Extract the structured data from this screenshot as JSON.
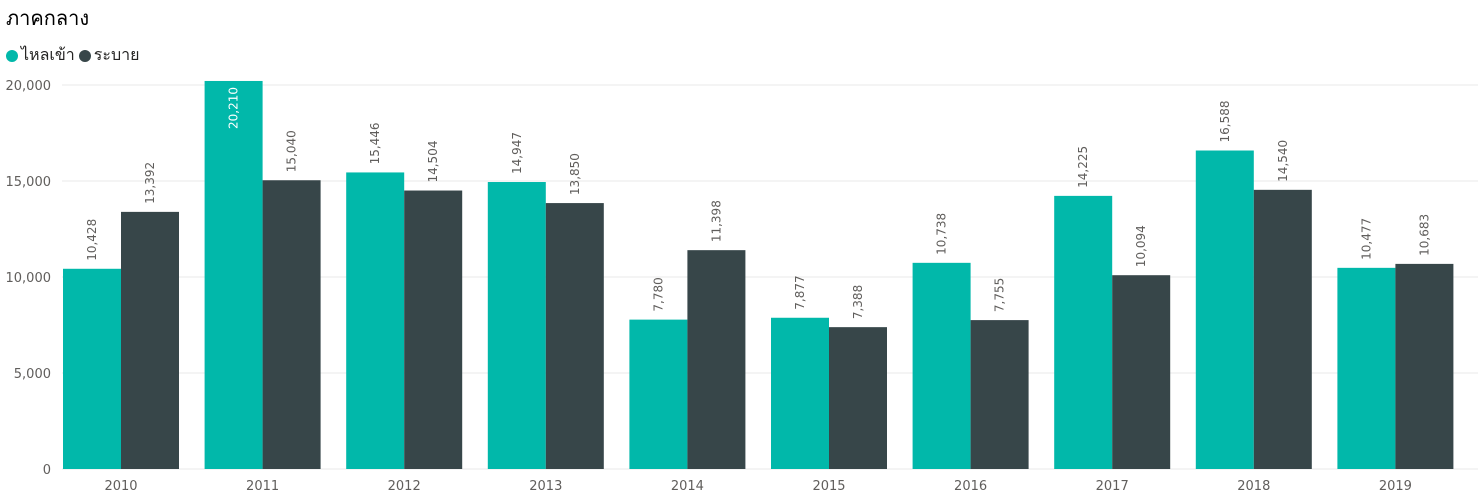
{
  "chart_data": {
    "type": "bar",
    "title": "ภาคกลาง",
    "categories": [
      "2010",
      "2011",
      "2012",
      "2013",
      "2014",
      "2015",
      "2016",
      "2017",
      "2018",
      "2019"
    ],
    "series": [
      {
        "name": "ไหลเข้า",
        "color": "#01b8aa",
        "values": [
          10428,
          20210,
          15446,
          14947,
          7780,
          7877,
          10738,
          14225,
          16588,
          10477
        ],
        "labels": [
          "10,428",
          "20,210",
          "15,446",
          "14,947",
          "7,780",
          "7,877",
          "10,738",
          "14,225",
          "16,588",
          "10,477"
        ]
      },
      {
        "name": "ระบาย",
        "color": "#374649",
        "values": [
          13392,
          15040,
          14504,
          13850,
          11398,
          7388,
          7755,
          10094,
          14540,
          10683
        ],
        "labels": [
          "13,392",
          "15,040",
          "14,504",
          "13,850",
          "11,398",
          "7,388",
          "7,755",
          "10,094",
          "14,540",
          "10,683"
        ]
      }
    ],
    "y_ticks": [
      0,
      5000,
      10000,
      15000,
      20000
    ],
    "y_tick_labels": [
      "0",
      "5,000",
      "10,000",
      "15,000",
      "20,000"
    ],
    "ylim": [
      0,
      20000
    ],
    "grid": true,
    "legend_position": "top-left",
    "data_labels": "vertical",
    "label_colors": {
      "outside": "#605e5c",
      "inside": "#ffffff"
    }
  }
}
